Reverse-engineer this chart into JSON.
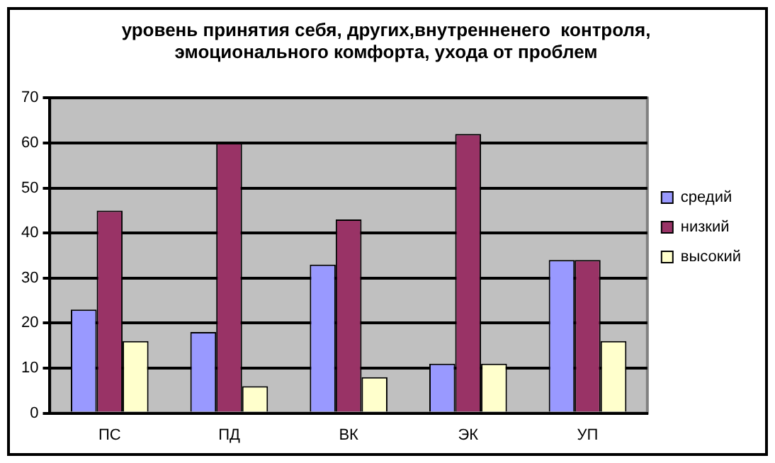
{
  "chart_data": {
    "type": "bar",
    "title": "уровень принятия себя, других,внутренненего  контроля,\nэмоционального комфорта, ухода от проблем",
    "categories": [
      "ПС",
      "ПД",
      "ВК",
      "ЭК",
      "УП"
    ],
    "series": [
      {
        "name": "средий",
        "color": "#9999ff",
        "values": [
          23,
          18,
          33,
          11,
          34
        ]
      },
      {
        "name": "низкий",
        "color": "#993366",
        "values": [
          45,
          60,
          43,
          62,
          34
        ]
      },
      {
        "name": "высокий",
        "color": "#ffffcc",
        "values": [
          16,
          6,
          8,
          11,
          16
        ]
      }
    ],
    "ylim": [
      0,
      70
    ],
    "yticks": [
      0,
      10,
      20,
      30,
      40,
      50,
      60,
      70
    ],
    "grid": "y",
    "legend": "right"
  }
}
